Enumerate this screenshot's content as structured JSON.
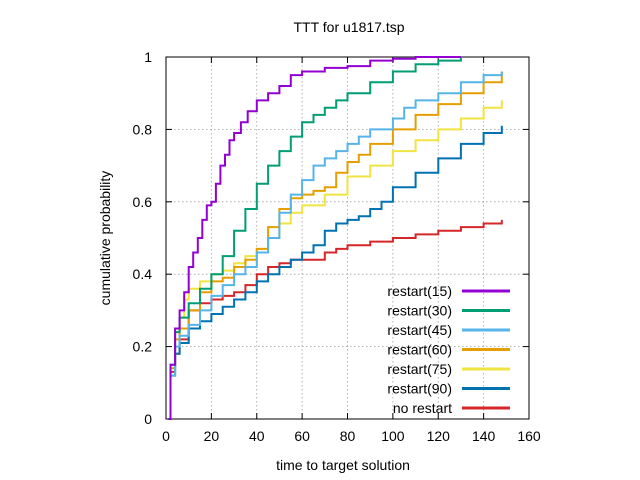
{
  "chart_data": {
    "type": "line",
    "title": "TTT for u1817.tsp",
    "xlabel": "time to target solution",
    "ylabel": "cumulative probability",
    "xlim": [
      0,
      160
    ],
    "ylim": [
      0,
      1
    ],
    "xticks": [
      "0",
      "20",
      "40",
      "60",
      "80",
      "100",
      "120",
      "140",
      "160"
    ],
    "yticks": [
      "0",
      "0.2",
      "0.4",
      "0.6",
      "0.8",
      "1"
    ],
    "grid": true,
    "legend_position": "bottom-right",
    "series": [
      {
        "name": "restart(15)",
        "color": "#9400d3",
        "points": [
          [
            1,
            0
          ],
          [
            2,
            0.15
          ],
          [
            4,
            0.25
          ],
          [
            6,
            0.3
          ],
          [
            8,
            0.35
          ],
          [
            10,
            0.42
          ],
          [
            12,
            0.46
          ],
          [
            14,
            0.5
          ],
          [
            16,
            0.55
          ],
          [
            18,
            0.59
          ],
          [
            20,
            0.6
          ],
          [
            22,
            0.65
          ],
          [
            24,
            0.7
          ],
          [
            26,
            0.73
          ],
          [
            28,
            0.77
          ],
          [
            30,
            0.79
          ],
          [
            33,
            0.82
          ],
          [
            36,
            0.85
          ],
          [
            40,
            0.88
          ],
          [
            45,
            0.9
          ],
          [
            50,
            0.92
          ],
          [
            55,
            0.95
          ],
          [
            60,
            0.96
          ],
          [
            70,
            0.97
          ],
          [
            80,
            0.975
          ],
          [
            90,
            0.99
          ],
          [
            100,
            0.995
          ],
          [
            110,
            1.0
          ],
          [
            120,
            1.0
          ],
          [
            130,
            1.0
          ]
        ]
      },
      {
        "name": "restart(30)",
        "color": "#009e73",
        "points": [
          [
            1,
            0
          ],
          [
            2,
            0.15
          ],
          [
            4,
            0.24
          ],
          [
            6,
            0.28
          ],
          [
            10,
            0.32
          ],
          [
            15,
            0.36
          ],
          [
            20,
            0.4
          ],
          [
            25,
            0.45
          ],
          [
            30,
            0.52
          ],
          [
            35,
            0.58
          ],
          [
            40,
            0.65
          ],
          [
            45,
            0.7
          ],
          [
            50,
            0.74
          ],
          [
            55,
            0.78
          ],
          [
            60,
            0.82
          ],
          [
            65,
            0.84
          ],
          [
            70,
            0.86
          ],
          [
            75,
            0.88
          ],
          [
            80,
            0.9
          ],
          [
            90,
            0.93
          ],
          [
            100,
            0.96
          ],
          [
            110,
            0.98
          ],
          [
            120,
            0.99
          ],
          [
            130,
            1.0
          ]
        ]
      },
      {
        "name": "restart(45)",
        "color": "#56b4e9",
        "points": [
          [
            1,
            0
          ],
          [
            2,
            0.12
          ],
          [
            4,
            0.2
          ],
          [
            6,
            0.23
          ],
          [
            10,
            0.26
          ],
          [
            15,
            0.3
          ],
          [
            20,
            0.34
          ],
          [
            25,
            0.37
          ],
          [
            30,
            0.4
          ],
          [
            35,
            0.42
          ],
          [
            40,
            0.46
          ],
          [
            45,
            0.5
          ],
          [
            50,
            0.57
          ],
          [
            55,
            0.62
          ],
          [
            60,
            0.66
          ],
          [
            65,
            0.7
          ],
          [
            70,
            0.72
          ],
          [
            75,
            0.74
          ],
          [
            80,
            0.76
          ],
          [
            85,
            0.78
          ],
          [
            90,
            0.8
          ],
          [
            100,
            0.83
          ],
          [
            105,
            0.86
          ],
          [
            110,
            0.88
          ],
          [
            120,
            0.9
          ],
          [
            130,
            0.93
          ],
          [
            140,
            0.95
          ],
          [
            148,
            0.96
          ]
        ]
      },
      {
        "name": "restart(60)",
        "color": "#e69f00",
        "points": [
          [
            1,
            0
          ],
          [
            2,
            0.14
          ],
          [
            4,
            0.22
          ],
          [
            6,
            0.25
          ],
          [
            10,
            0.3
          ],
          [
            15,
            0.35
          ],
          [
            20,
            0.38
          ],
          [
            25,
            0.39
          ],
          [
            30,
            0.42
          ],
          [
            35,
            0.44
          ],
          [
            40,
            0.47
          ],
          [
            45,
            0.53
          ],
          [
            50,
            0.58
          ],
          [
            55,
            0.61
          ],
          [
            60,
            0.62
          ],
          [
            65,
            0.63
          ],
          [
            70,
            0.64
          ],
          [
            75,
            0.68
          ],
          [
            80,
            0.71
          ],
          [
            85,
            0.73
          ],
          [
            90,
            0.76
          ],
          [
            100,
            0.8
          ],
          [
            110,
            0.84
          ],
          [
            120,
            0.87
          ],
          [
            130,
            0.9
          ],
          [
            140,
            0.93
          ],
          [
            148,
            0.96
          ]
        ]
      },
      {
        "name": "restart(75)",
        "color": "#f0e442",
        "points": [
          [
            1,
            0
          ],
          [
            2,
            0.15
          ],
          [
            4,
            0.24
          ],
          [
            6,
            0.28
          ],
          [
            8,
            0.33
          ],
          [
            10,
            0.36
          ],
          [
            15,
            0.38
          ],
          [
            20,
            0.4
          ],
          [
            25,
            0.41
          ],
          [
            30,
            0.43
          ],
          [
            35,
            0.45
          ],
          [
            40,
            0.47
          ],
          [
            45,
            0.5
          ],
          [
            50,
            0.54
          ],
          [
            55,
            0.57
          ],
          [
            60,
            0.59
          ],
          [
            70,
            0.62
          ],
          [
            80,
            0.67
          ],
          [
            90,
            0.7
          ],
          [
            100,
            0.74
          ],
          [
            110,
            0.77
          ],
          [
            120,
            0.8
          ],
          [
            130,
            0.83
          ],
          [
            140,
            0.86
          ],
          [
            148,
            0.88
          ]
        ]
      },
      {
        "name": "restart(90)",
        "color": "#0072b2",
        "points": [
          [
            1,
            0
          ],
          [
            2,
            0.12
          ],
          [
            4,
            0.18
          ],
          [
            6,
            0.21
          ],
          [
            10,
            0.25
          ],
          [
            15,
            0.27
          ],
          [
            20,
            0.29
          ],
          [
            25,
            0.31
          ],
          [
            30,
            0.33
          ],
          [
            35,
            0.35
          ],
          [
            40,
            0.38
          ],
          [
            45,
            0.4
          ],
          [
            50,
            0.42
          ],
          [
            55,
            0.44
          ],
          [
            60,
            0.46
          ],
          [
            65,
            0.48
          ],
          [
            70,
            0.52
          ],
          [
            75,
            0.54
          ],
          [
            80,
            0.55
          ],
          [
            85,
            0.56
          ],
          [
            90,
            0.58
          ],
          [
            95,
            0.6
          ],
          [
            100,
            0.64
          ],
          [
            110,
            0.68
          ],
          [
            120,
            0.72
          ],
          [
            130,
            0.76
          ],
          [
            140,
            0.79
          ],
          [
            148,
            0.81
          ]
        ]
      },
      {
        "name": "no restart",
        "color": "#d62728",
        "points": [
          [
            1,
            0
          ],
          [
            2,
            0.13
          ],
          [
            4,
            0.18
          ],
          [
            6,
            0.22
          ],
          [
            10,
            0.3
          ],
          [
            15,
            0.32
          ],
          [
            20,
            0.33
          ],
          [
            25,
            0.34
          ],
          [
            30,
            0.35
          ],
          [
            35,
            0.37
          ],
          [
            40,
            0.4
          ],
          [
            45,
            0.42
          ],
          [
            50,
            0.43
          ],
          [
            55,
            0.44
          ],
          [
            60,
            0.44
          ],
          [
            70,
            0.46
          ],
          [
            75,
            0.47
          ],
          [
            80,
            0.48
          ],
          [
            90,
            0.49
          ],
          [
            100,
            0.5
          ],
          [
            110,
            0.51
          ],
          [
            120,
            0.52
          ],
          [
            130,
            0.53
          ],
          [
            140,
            0.54
          ],
          [
            148,
            0.55
          ]
        ]
      }
    ]
  }
}
